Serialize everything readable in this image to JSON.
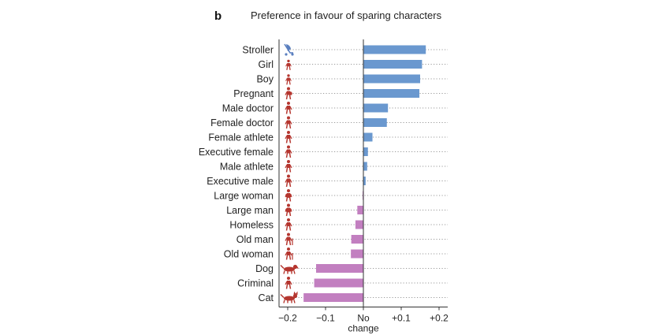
{
  "panel_letter": "b",
  "chart_data": {
    "type": "bar",
    "orientation": "horizontal",
    "title": "Preference in favour of sparing characters",
    "categories": [
      "Stroller",
      "Girl",
      "Boy",
      "Pregnant",
      "Male doctor",
      "Female doctor",
      "Female athlete",
      "Executive female",
      "Male athlete",
      "Executive male",
      "Large woman",
      "Large man",
      "Homeless",
      "Old man",
      "Old woman",
      "Dog",
      "Criminal",
      "Cat"
    ],
    "values": [
      0.165,
      0.155,
      0.15,
      0.148,
      0.065,
      0.062,
      0.024,
      0.012,
      0.01,
      0.006,
      -0.002,
      -0.016,
      -0.021,
      -0.032,
      -0.033,
      -0.125,
      -0.13,
      -0.158
    ],
    "xlim": [
      -0.2,
      0.2
    ],
    "xticks": [
      {
        "value": -0.2,
        "label": "−0.2",
        "sub": ""
      },
      {
        "value": -0.1,
        "label": "−0.1",
        "sub": ""
      },
      {
        "value": 0,
        "label": "No",
        "sub": "change"
      },
      {
        "value": 0.1,
        "label": "+0.1",
        "sub": ""
      },
      {
        "value": 0.2,
        "label": "+0.2",
        "sub": ""
      }
    ],
    "colors": {
      "positive": "#6a98cf",
      "negative": "#c27fc0",
      "icon": "#b5362f",
      "stroller_icon": "#5a7fbf"
    },
    "icons": [
      "stroller-icon",
      "girl-icon",
      "boy-icon",
      "pregnant-icon",
      "male-doctor-icon",
      "female-doctor-icon",
      "female-athlete-icon",
      "executive-female-icon",
      "male-athlete-icon",
      "executive-male-icon",
      "large-woman-icon",
      "large-man-icon",
      "homeless-icon",
      "old-man-icon",
      "old-woman-icon",
      "dog-icon",
      "criminal-icon",
      "cat-icon"
    ],
    "grid": "dotted row guides"
  }
}
